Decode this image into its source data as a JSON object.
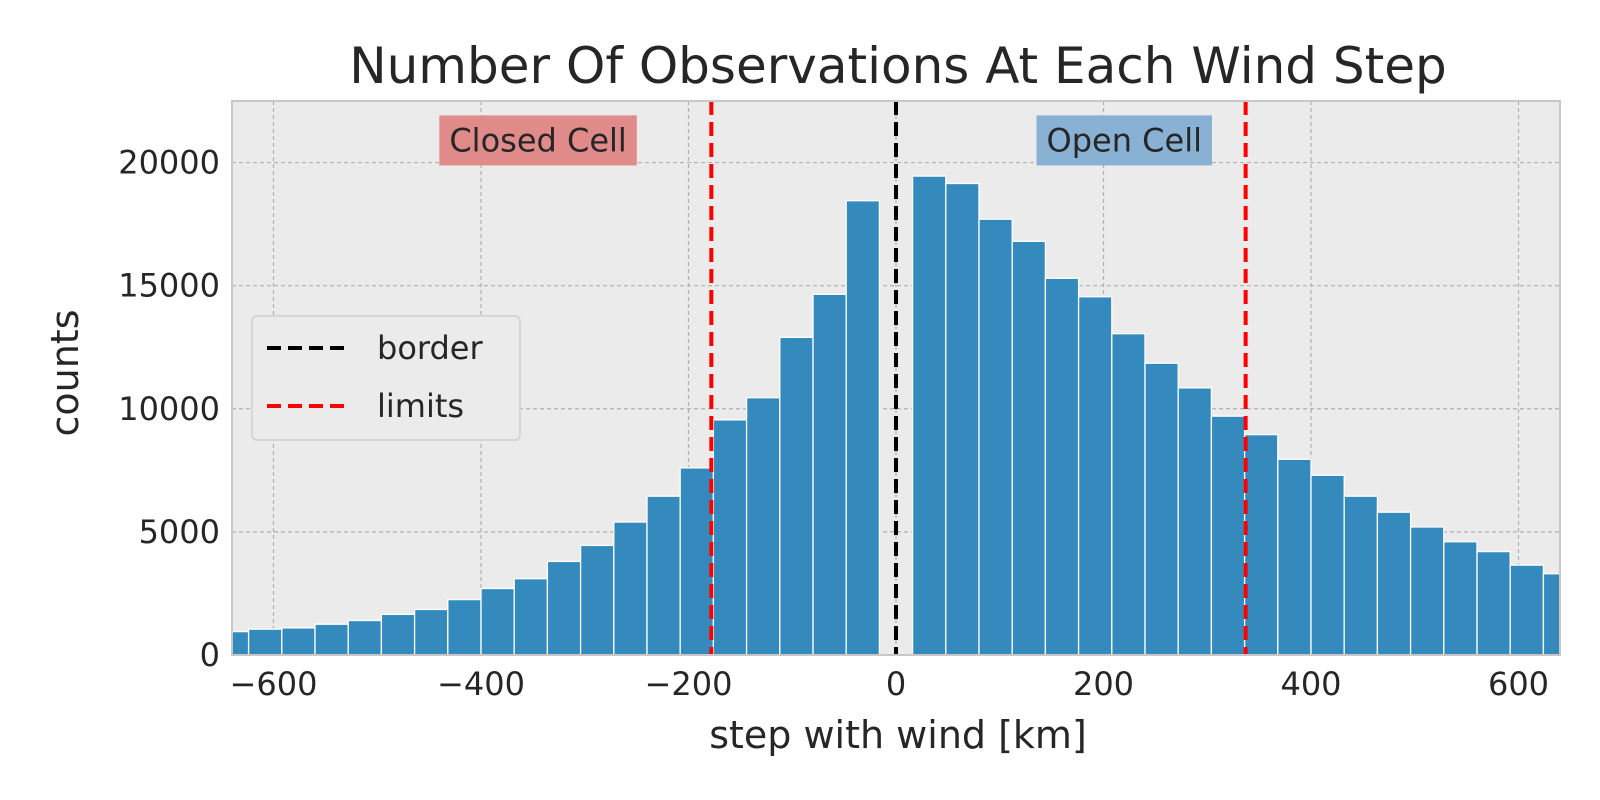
{
  "chart_data": {
    "type": "bar",
    "title": "Number Of Observations At Each Wind Step",
    "xlabel": "step with wind [km]",
    "ylabel": "counts",
    "xlim": [
      -640,
      640
    ],
    "ylim": [
      0,
      22500
    ],
    "xticks": [
      -600,
      -400,
      -200,
      0,
      200,
      400,
      600
    ],
    "yticks": [
      0,
      5000,
      10000,
      15000,
      20000
    ],
    "grid": true,
    "bin_width": 32,
    "series": [
      {
        "bins": [
          {
            "x0": -656,
            "x1": -624,
            "value": 950
          },
          {
            "x0": -624,
            "x1": -592,
            "value": 1050
          },
          {
            "x0": -592,
            "x1": -560,
            "value": 1100
          },
          {
            "x0": -560,
            "x1": -528,
            "value": 1250
          },
          {
            "x0": -528,
            "x1": -496,
            "value": 1400
          },
          {
            "x0": -496,
            "x1": -464,
            "value": 1650
          },
          {
            "x0": -464,
            "x1": -432,
            "value": 1850
          },
          {
            "x0": -432,
            "x1": -400,
            "value": 2250
          },
          {
            "x0": -400,
            "x1": -368,
            "value": 2700
          },
          {
            "x0": -368,
            "x1": -336,
            "value": 3100
          },
          {
            "x0": -336,
            "x1": -304,
            "value": 3800
          },
          {
            "x0": -304,
            "x1": -272,
            "value": 4450
          },
          {
            "x0": -272,
            "x1": -240,
            "value": 5400
          },
          {
            "x0": -240,
            "x1": -208,
            "value": 6450
          },
          {
            "x0": -208,
            "x1": -176,
            "value": 7600
          },
          {
            "x0": -176,
            "x1": -144,
            "value": 9550
          },
          {
            "x0": -144,
            "x1": -112,
            "value": 10450
          },
          {
            "x0": -112,
            "x1": -80,
            "value": 12900
          },
          {
            "x0": -80,
            "x1": -48,
            "value": 14650
          },
          {
            "x0": -48,
            "x1": -16,
            "value": 18450
          },
          {
            "x0": 16,
            "x1": 48,
            "value": 19450
          },
          {
            "x0": 48,
            "x1": 80,
            "value": 19150
          },
          {
            "x0": 80,
            "x1": 112,
            "value": 17700
          },
          {
            "x0": 112,
            "x1": 144,
            "value": 16800
          },
          {
            "x0": 144,
            "x1": 176,
            "value": 15300
          },
          {
            "x0": 176,
            "x1": 208,
            "value": 14550
          },
          {
            "x0": 208,
            "x1": 240,
            "value": 13050
          },
          {
            "x0": 240,
            "x1": 272,
            "value": 11850
          },
          {
            "x0": 272,
            "x1": 304,
            "value": 10850
          },
          {
            "x0": 304,
            "x1": 336,
            "value": 9700
          },
          {
            "x0": 336,
            "x1": 368,
            "value": 8950
          },
          {
            "x0": 368,
            "x1": 400,
            "value": 7950
          },
          {
            "x0": 400,
            "x1": 432,
            "value": 7300
          },
          {
            "x0": 432,
            "x1": 464,
            "value": 6450
          },
          {
            "x0": 464,
            "x1": 496,
            "value": 5800
          },
          {
            "x0": 496,
            "x1": 528,
            "value": 5200
          },
          {
            "x0": 528,
            "x1": 560,
            "value": 4600
          },
          {
            "x0": 560,
            "x1": 592,
            "value": 4200
          },
          {
            "x0": 592,
            "x1": 624,
            "value": 3650
          },
          {
            "x0": 624,
            "x1": 656,
            "value": 3300
          }
        ]
      }
    ],
    "vlines": [
      {
        "name": "border",
        "x": 0,
        "color": "#000000",
        "style": "dashed"
      },
      {
        "name": "limits",
        "x": -178,
        "color": "#ff0000",
        "style": "dashed"
      },
      {
        "name": "limits",
        "x": 337,
        "color": "#ff0000",
        "style": "dashed"
      }
    ],
    "legend": {
      "placement": "center-left",
      "entries": [
        {
          "label": "border",
          "color": "#000000"
        },
        {
          "label": "limits",
          "color": "#ff0000"
        }
      ]
    },
    "annotations": [
      {
        "text": "Closed Cell",
        "x": -345,
        "y": 20900,
        "box_color": "#e08a8a"
      },
      {
        "text": "Open Cell",
        "x": 220,
        "y": 20900,
        "box_color": "#89b1d3"
      }
    ],
    "colors": {
      "bar": "#348abd",
      "plot_background": "#ebebeb",
      "grid": "#b0b0b0"
    }
  }
}
